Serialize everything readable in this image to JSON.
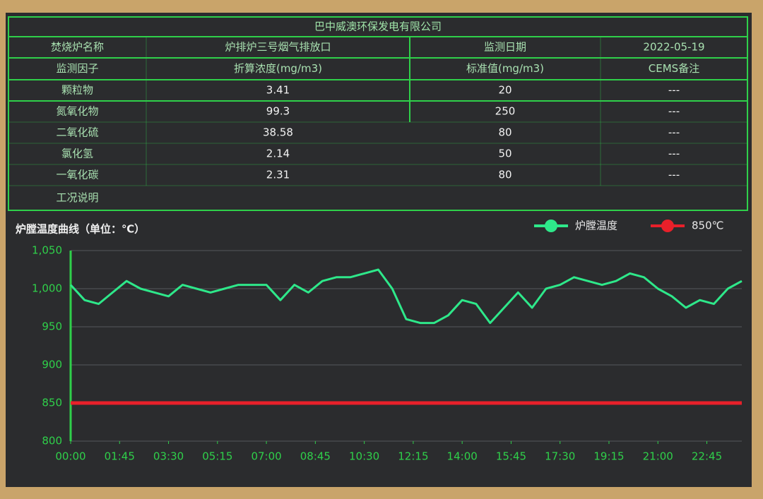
{
  "table": {
    "title": "巴中威澳环保发电有限公司",
    "rows": [
      [
        "焚烧炉名称",
        "炉排炉三号烟气排放口",
        "监测日期",
        "2022-05-19"
      ],
      [
        "监测因子",
        "折算浓度(mg/m3)",
        "标准值(mg/m3)",
        "CEMS备注"
      ],
      [
        "颗粒物",
        "3.41",
        "20",
        "---"
      ],
      [
        "氮氧化物",
        "99.3",
        "250",
        "---"
      ],
      [
        "二氧化硫",
        "38.58",
        "80",
        "---"
      ],
      [
        "氯化氢",
        "2.14",
        "50",
        "---"
      ],
      [
        "一氧化碳",
        "2.31",
        "80",
        "---"
      ],
      [
        "工况说明"
      ]
    ]
  },
  "chart_data": {
    "type": "line",
    "title": "炉膛温度曲线（单位：℃）",
    "x": [
      0,
      30,
      60,
      90,
      120,
      150,
      180,
      210,
      240,
      270,
      300,
      330,
      360,
      390,
      420,
      450,
      480,
      510,
      540,
      570,
      600,
      630,
      660,
      690,
      720,
      750,
      780,
      810,
      840,
      870,
      900,
      930,
      960,
      990,
      1020,
      1050,
      1080,
      1110,
      1140,
      1170,
      1200,
      1230,
      1260,
      1290,
      1320,
      1350,
      1380,
      1410,
      1440
    ],
    "series": [
      {
        "name": "炉膛温度",
        "color": "#2ee88a",
        "values": [
          1005,
          985,
          980,
          995,
          1010,
          1000,
          995,
          990,
          1005,
          1000,
          995,
          1000,
          1005,
          1005,
          1005,
          985,
          1005,
          995,
          1010,
          1015,
          1015,
          1020,
          1025,
          1000,
          960,
          955,
          955,
          965,
          985,
          980,
          955,
          975,
          995,
          975,
          1000,
          1005,
          1015,
          1010,
          1005,
          1010,
          1020,
          1015,
          1000,
          990,
          975,
          985,
          980,
          1000,
          1010
        ]
      },
      {
        "name": "850℃",
        "color": "#e8202a",
        "values": [
          850,
          850,
          850,
          850,
          850,
          850,
          850,
          850,
          850,
          850,
          850,
          850,
          850,
          850,
          850,
          850,
          850,
          850,
          850,
          850,
          850,
          850,
          850,
          850,
          850,
          850,
          850,
          850,
          850,
          850,
          850,
          850,
          850,
          850,
          850,
          850,
          850,
          850,
          850,
          850,
          850,
          850,
          850,
          850,
          850,
          850,
          850,
          850,
          850
        ]
      }
    ],
    "xlim": [
      0,
      1440
    ],
    "ylim": [
      800,
      1050
    ],
    "xticks": [
      {
        "value": 0,
        "label": "00:00"
      },
      {
        "value": 105,
        "label": "01:45"
      },
      {
        "value": 210,
        "label": "03:30"
      },
      {
        "value": 315,
        "label": "05:15"
      },
      {
        "value": 420,
        "label": "07:00"
      },
      {
        "value": 525,
        "label": "08:45"
      },
      {
        "value": 630,
        "label": "10:30"
      },
      {
        "value": 735,
        "label": "12:15"
      },
      {
        "value": 840,
        "label": "14:00"
      },
      {
        "value": 945,
        "label": "15:45"
      },
      {
        "value": 1050,
        "label": "17:30"
      },
      {
        "value": 1155,
        "label": "19:15"
      },
      {
        "value": 1260,
        "label": "21:00"
      },
      {
        "value": 1365,
        "label": "22:45"
      }
    ],
    "yticks": [
      800,
      850,
      900,
      950,
      {
        "value": 1000,
        "label": "1,000"
      },
      {
        "value": 1050,
        "label": "1,050"
      }
    ],
    "grid": true,
    "legend": "top-right"
  }
}
